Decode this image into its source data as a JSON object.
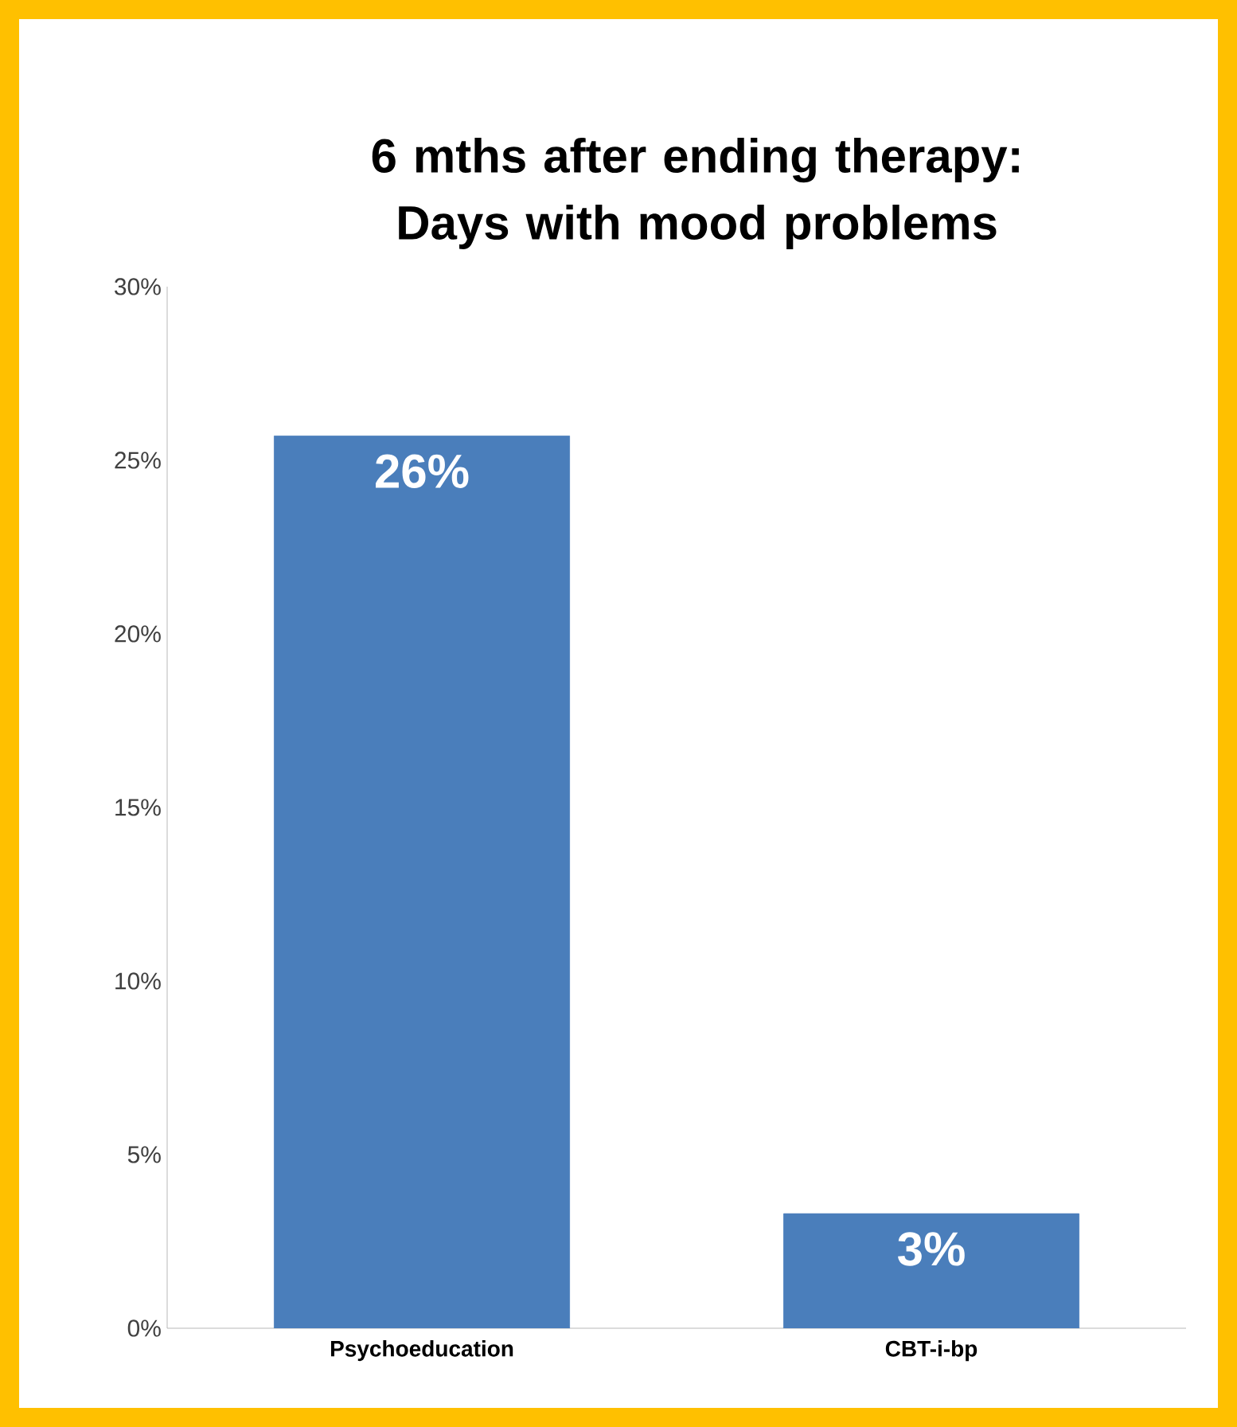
{
  "chart_data": {
    "type": "bar",
    "title": "6 mths after ending therapy: Days with mood problems",
    "categories": [
      "Psychoeducation",
      "CBT-i-bp"
    ],
    "values": [
      25.7,
      3.3
    ],
    "value_labels": [
      "26%",
      "3%"
    ],
    "yticks": [
      {
        "value": 0,
        "label": "0%"
      },
      {
        "value": 5,
        "label": "5%"
      },
      {
        "value": 10,
        "label": "10%"
      },
      {
        "value": 15,
        "label": "15%"
      },
      {
        "value": 20,
        "label": "20%"
      },
      {
        "value": 25,
        "label": "25%"
      },
      {
        "value": 30,
        "label": "30%"
      }
    ],
    "color": "#4a7ebb",
    "ylim": [
      0,
      30
    ]
  }
}
